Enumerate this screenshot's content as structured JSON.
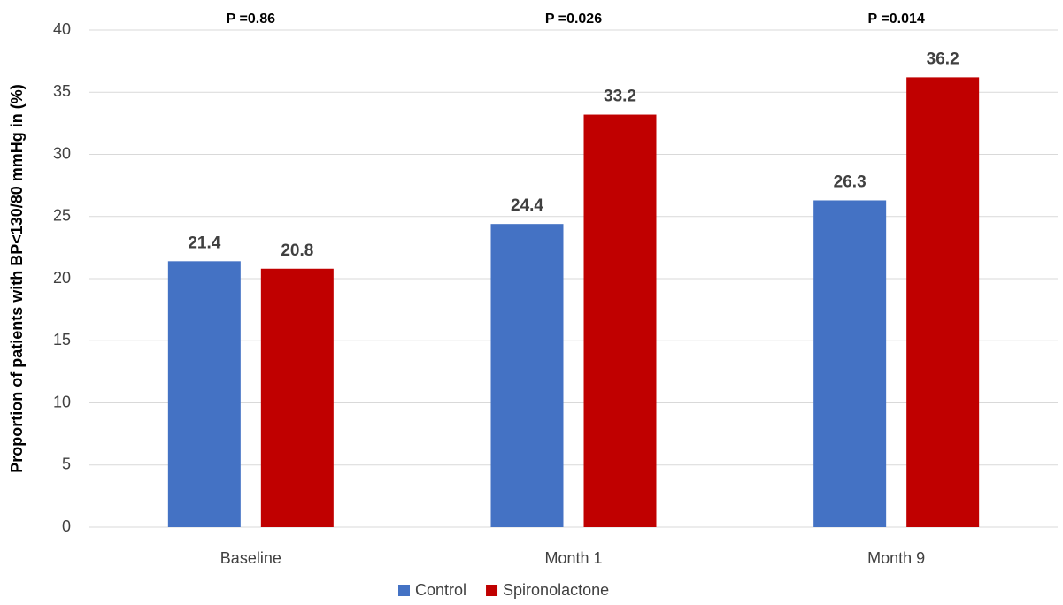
{
  "chart_data": {
    "type": "bar",
    "ylabel": "Proportion of patients with BP<130/80 mmHg in (%)",
    "categories": [
      "Baseline",
      "Month 1",
      "Month 9"
    ],
    "annotations": [
      "P =0.86",
      "P =0.026",
      "P =0.014"
    ],
    "series": [
      {
        "name": "Control",
        "color": "#4472c4",
        "values": [
          21.4,
          24.4,
          26.3
        ]
      },
      {
        "name": "Spironolactone",
        "color": "#c00000",
        "values": [
          20.8,
          33.2,
          36.2
        ]
      }
    ],
    "ylim": [
      0,
      40
    ],
    "yticks": [
      0,
      5,
      10,
      15,
      20,
      25,
      30,
      35,
      40
    ],
    "grid": true,
    "legend": "bottom"
  }
}
